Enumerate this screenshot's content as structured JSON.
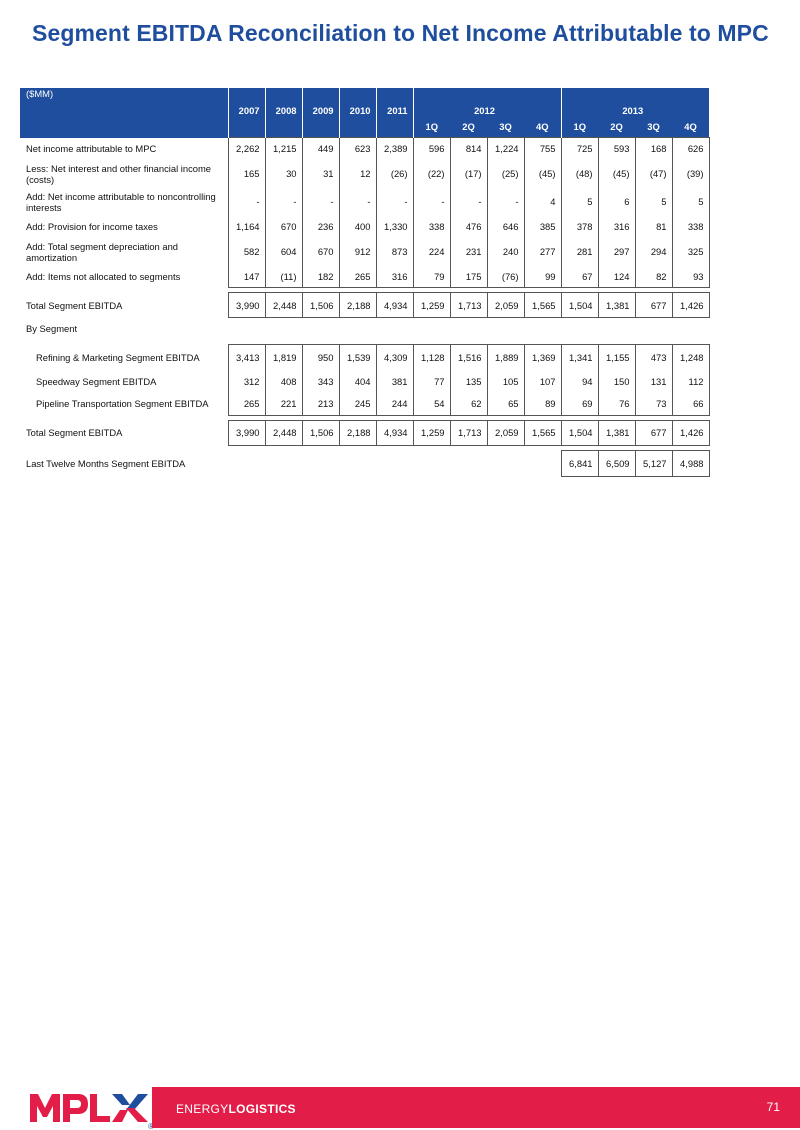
{
  "title": "Segment EBITDA Reconciliation to Net Income Attributable to MPC",
  "table": {
    "unit_label": "($MM)",
    "years": [
      "2007",
      "2008",
      "2009",
      "2010",
      "2011"
    ],
    "groups": [
      "2012",
      "2013"
    ],
    "quarters_2012": [
      "1Q",
      "2Q",
      "3Q",
      "4Q"
    ],
    "quarters_2013": [
      "1Q",
      "2Q",
      "3Q",
      "4Q"
    ],
    "rows": [
      {
        "label": "Net income attributable to MPC",
        "values": [
          "2,262",
          "1,215",
          "449",
          "623",
          "2,389",
          "596",
          "814",
          "1,224",
          "755",
          "725",
          "593",
          "168",
          "626"
        ]
      },
      {
        "label": "Less: Net interest and other financial income (costs)",
        "values": [
          "165",
          "30",
          "31",
          "12",
          "(26)",
          "(22)",
          "(17)",
          "(25)",
          "(45)",
          "(48)",
          "(45)",
          "(47)",
          "(39)"
        ]
      },
      {
        "label": "Add: Net income attributable to noncontrolling interests",
        "values": [
          "-",
          "-",
          "-",
          "-",
          "-",
          "-",
          "-",
          "-",
          "4",
          "5",
          "6",
          "5",
          "5"
        ]
      },
      {
        "label": "Add: Provision for income taxes",
        "values": [
          "1,164",
          "670",
          "236",
          "400",
          "1,330",
          "338",
          "476",
          "646",
          "385",
          "378",
          "316",
          "81",
          "338"
        ]
      },
      {
        "label": "Add: Total segment depreciation and amortization",
        "values": [
          "582",
          "604",
          "670",
          "912",
          "873",
          "224",
          "231",
          "240",
          "277",
          "281",
          "297",
          "294",
          "325"
        ]
      },
      {
        "label": "Add: Items not allocated to segments",
        "values": [
          "147",
          "(11)",
          "182",
          "265",
          "316",
          "79",
          "175",
          "(76)",
          "99",
          "67",
          "124",
          "82",
          "93"
        ]
      },
      {
        "label": "Total Segment EBITDA",
        "values": [
          "3,990",
          "2,448",
          "1,506",
          "2,188",
          "4,934",
          "1,259",
          "1,713",
          "2,059",
          "1,565",
          "1,504",
          "1,381",
          "677",
          "1,426"
        ]
      },
      {
        "label": "By Segment"
      },
      {
        "label": "Refining & Marketing Segment EBITDA",
        "values": [
          "3,413",
          "1,819",
          "950",
          "1,539",
          "4,309",
          "1,128",
          "1,516",
          "1,889",
          "1,369",
          "1,341",
          "1,155",
          "473",
          "1,248"
        ]
      },
      {
        "label": "Speedway Segment EBITDA",
        "values": [
          "312",
          "408",
          "343",
          "404",
          "381",
          "77",
          "135",
          "105",
          "107",
          "94",
          "150",
          "131",
          "112"
        ]
      },
      {
        "label": "Pipeline Transportation Segment EBITDA",
        "values": [
          "265",
          "221",
          "213",
          "245",
          "244",
          "54",
          "62",
          "65",
          "89",
          "69",
          "76",
          "73",
          "66"
        ]
      },
      {
        "label": "Total Segment EBITDA",
        "values": [
          "3,990",
          "2,448",
          "1,506",
          "2,188",
          "4,934",
          "1,259",
          "1,713",
          "2,059",
          "1,565",
          "1,504",
          "1,381",
          "677",
          "1,426"
        ]
      },
      {
        "label": "Last Twelve Months Segment EBITDA",
        "values_2013": [
          "6,841",
          "6,509",
          "5,127",
          "4,988"
        ]
      }
    ]
  },
  "footer": {
    "logo_text": "MPLX",
    "registered": "®",
    "energy": "ENERGY",
    "logistics": "LOGISTICS",
    "page_number": "71"
  },
  "colors": {
    "title_blue": "#1f4e9e",
    "header_blue": "#1f4e9e",
    "footer_red": "#e11d48"
  }
}
